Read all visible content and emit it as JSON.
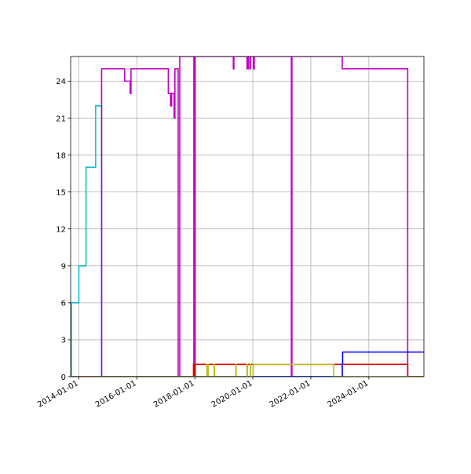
{
  "chart_data": {
    "type": "line",
    "title": "",
    "xlabel": "",
    "ylabel": "",
    "xlim": [
      "2013-09-20",
      "2025-11-25"
    ],
    "ylim": [
      0,
      26
    ],
    "grid": true,
    "x_ticks": [
      "2014-01-01",
      "2016-01-01",
      "2018-01-01",
      "2020-01-01",
      "2022-01-01",
      "2024-01-01"
    ],
    "y_ticks": [
      0,
      3,
      6,
      9,
      12,
      15,
      18,
      21,
      24
    ],
    "colors": {
      "cyan": "#17becf",
      "magenta": "#c000c0",
      "red": "#e00000",
      "blue": "#0000ff",
      "olive": "#bcbd22"
    },
    "series": [
      {
        "color": "#17becf",
        "steps": [
          [
            "2013-09-25",
            0
          ],
          [
            "2013-10-01",
            6
          ],
          [
            "2014-01-01",
            9
          ],
          [
            "2014-04-01",
            17
          ],
          [
            "2014-08-01",
            22
          ],
          [
            "2014-10-15",
            0
          ],
          [
            "2025-11-25",
            0
          ]
        ]
      },
      {
        "color": "#c000c0",
        "steps": [
          [
            "2013-09-20",
            0
          ],
          [
            "2014-10-15",
            25
          ],
          [
            "2015-08-01",
            24
          ],
          [
            "2015-10-01",
            24
          ],
          [
            "2015-10-10",
            23
          ],
          [
            "2015-10-20",
            25
          ],
          [
            "2017-02-01",
            23
          ],
          [
            "2017-03-01",
            22
          ],
          [
            "2017-03-15",
            23
          ],
          [
            "2017-04-15",
            21
          ],
          [
            "2017-04-25",
            25
          ],
          [
            "2017-06-05",
            0
          ],
          [
            "2017-06-25",
            27
          ],
          [
            "2017-12-20",
            0
          ],
          [
            "2018-01-05",
            27
          ],
          [
            "2019-05-01",
            25
          ],
          [
            "2019-05-08",
            27
          ],
          [
            "2019-10-20",
            25
          ],
          [
            "2019-11-05",
            27
          ],
          [
            "2019-11-25",
            25
          ],
          [
            "2019-12-05",
            27
          ],
          [
            "2020-01-10",
            25
          ],
          [
            "2020-01-20",
            27
          ],
          [
            "2021-05-01",
            0
          ],
          [
            "2021-05-08",
            27
          ],
          [
            "2023-02-01",
            25
          ],
          [
            "2025-05-05",
            0
          ],
          [
            "2025-11-25",
            0
          ]
        ]
      },
      {
        "color": "#e00000",
        "steps": [
          [
            "2013-09-20",
            0
          ],
          [
            "2017-12-15",
            1
          ],
          [
            "2017-12-25",
            0
          ],
          [
            "2018-01-05",
            1
          ],
          [
            "2025-05-05",
            0
          ],
          [
            "2025-11-25",
            0
          ]
        ]
      },
      {
        "color": "#0000ff",
        "steps": [
          [
            "2013-09-20",
            0
          ],
          [
            "2023-02-01",
            1
          ],
          [
            "2023-02-05",
            2
          ],
          [
            "2025-11-25",
            2
          ]
        ]
      },
      {
        "color": "#bcbd22",
        "steps": [
          [
            "2013-09-20",
            0
          ],
          [
            "2018-06-01",
            1
          ],
          [
            "2018-06-05",
            0
          ],
          [
            "2018-06-15",
            1
          ],
          [
            "2018-06-20",
            0
          ],
          [
            "2018-09-01",
            1
          ],
          [
            "2018-09-05",
            0
          ],
          [
            "2019-06-01",
            1
          ],
          [
            "2019-06-05",
            0
          ],
          [
            "2019-10-20",
            1
          ],
          [
            "2019-10-25",
            0
          ],
          [
            "2019-12-01",
            1
          ],
          [
            "2019-12-05",
            0
          ],
          [
            "2020-01-05",
            1
          ],
          [
            "2022-10-15",
            0
          ],
          [
            "2025-11-25",
            0
          ]
        ]
      }
    ]
  }
}
